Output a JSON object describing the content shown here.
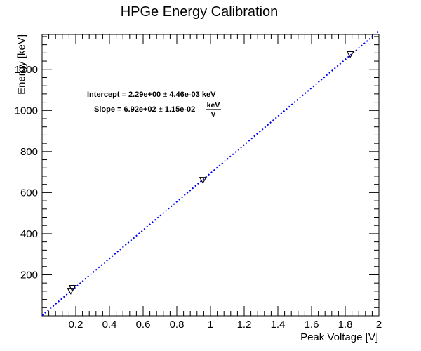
{
  "chart_data": {
    "type": "scatter",
    "title": "HPGe Energy Calibration",
    "xlabel": "Peak Voltage [V]",
    "ylabel": "Energy [keV]",
    "xlim": [
      0.0,
      2.0
    ],
    "ylim": [
      0,
      1370
    ],
    "x_ticks": [
      0.2,
      0.4,
      0.6,
      0.8,
      1,
      1.2,
      1.4,
      1.6,
      1.8,
      2
    ],
    "x_tick_labels": [
      "0.2",
      "0.4",
      "0.6",
      "0.8",
      "1",
      "1.2",
      "1.4",
      "1.6",
      "1.8",
      "2"
    ],
    "y_ticks": [
      200,
      400,
      600,
      800,
      1000,
      1200
    ],
    "y_tick_labels": [
      "200",
      "400",
      "600",
      "800",
      "1000",
      "1200"
    ],
    "grid": false,
    "series": [
      {
        "marker": "open-triangle-down",
        "color": "#000000",
        "points": [
          {
            "x": 0.17,
            "y": 122
          },
          {
            "x": 0.18,
            "y": 136
          },
          {
            "x": 0.955,
            "y": 662
          },
          {
            "x": 1.83,
            "y": 1274
          }
        ]
      }
    ],
    "fit": {
      "type": "linear",
      "style": "dotted",
      "color": "#0000ee",
      "intercept": 2.29,
      "slope": 692,
      "x_range": [
        0.0,
        2.0
      ]
    },
    "annotations": {
      "intercept_text": "Intercept = 2.29e+00",
      "intercept_pm": "±",
      "intercept_err": "4.46e-03 keV",
      "slope_text": "Slope = 6.92e+02",
      "slope_pm": "±",
      "slope_err": "1.15e-02",
      "slope_unit_num": "keV",
      "slope_unit_den": "V"
    }
  }
}
